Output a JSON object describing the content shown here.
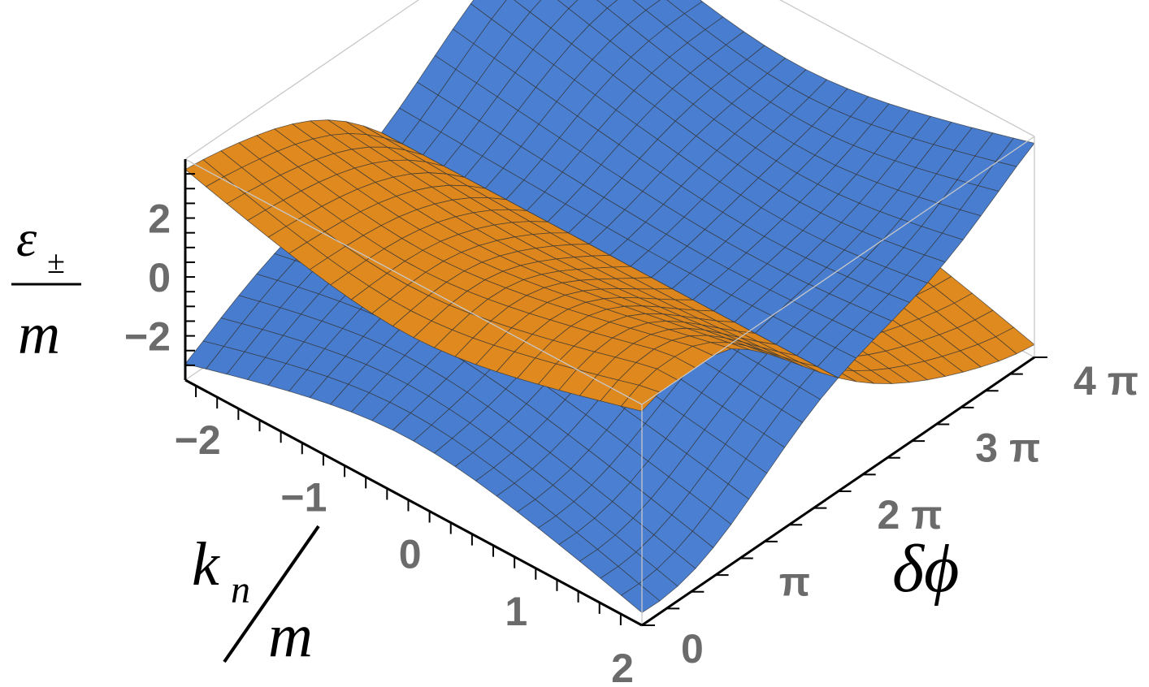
{
  "chart_data": {
    "type": "surface3d",
    "title": "",
    "xlabel": {
      "numerator": "k",
      "numerator_subscript": "n",
      "denominator": "m"
    },
    "ylabel": "δϕ",
    "zlabel": {
      "numerator": "ε",
      "numerator_subscript": "±",
      "denominator": "m"
    },
    "x_range": [
      -2.3,
      2.0
    ],
    "y_range": [
      0,
      12.566
    ],
    "z_range": [
      -3.5,
      4.0
    ],
    "x_ticks": [
      {
        "value": -2,
        "label": "−2"
      },
      {
        "value": -1,
        "label": "−1"
      },
      {
        "value": 0,
        "label": "0"
      },
      {
        "value": 1,
        "label": "1"
      },
      {
        "value": 2,
        "label": "2"
      }
    ],
    "y_ticks": [
      {
        "value": 0,
        "label": "0"
      },
      {
        "value": 3.1416,
        "label": "π"
      },
      {
        "value": 6.2832,
        "label": "2 π"
      },
      {
        "value": 9.4248,
        "label": "3 π"
      },
      {
        "value": 12.566,
        "label": "4 π"
      }
    ],
    "z_ticks": [
      {
        "value": 2,
        "label": "2"
      },
      {
        "value": 0,
        "label": "0"
      },
      {
        "value": -2,
        "label": "−2"
      }
    ],
    "series": [
      {
        "kind": "upper",
        "color": "#f0a02a",
        "shade_dark": "#c96c10"
      },
      {
        "kind": "lower",
        "color": "#5b93e6",
        "shade_dark": "#2f5fb0"
      }
    ],
    "surface_model": {
      "shift": 0.7,
      "amplitude": 1.2,
      "offset": 0.35,
      "slope": 0.9,
      "phase_scale": 0.5
    },
    "mesh": {
      "nx": 22,
      "ny": 22
    },
    "grid": false,
    "box": true
  }
}
